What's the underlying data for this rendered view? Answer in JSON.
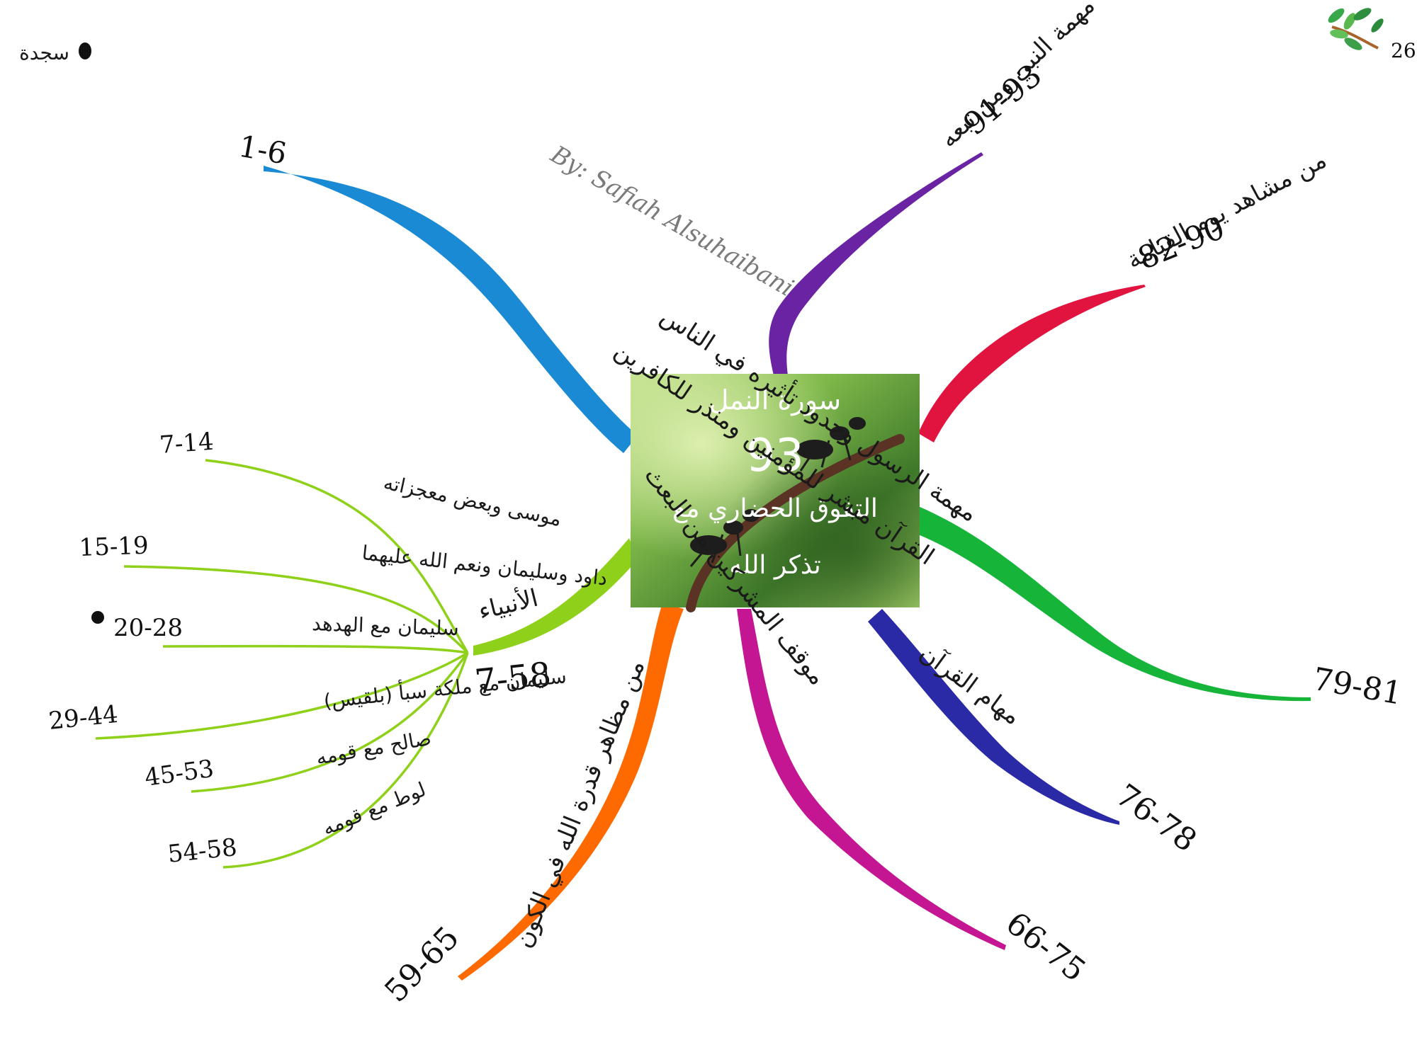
{
  "page_number": "26",
  "legend": {
    "label": "سجدة"
  },
  "credit": "By: Safiah Alsuhaibani",
  "center": {
    "title": "سورة النمل",
    "count": "93",
    "theme_line1": "التفوق الحضاري مع",
    "theme_line2": "تذكر الله"
  },
  "branches": {
    "b1": {
      "title": "القرآن مبشر للمؤمنين ومنذر للكافرين",
      "range": "1-6",
      "color": "#1a8ad4"
    },
    "b2": {
      "title": "مهمة النبي ومن تبعه",
      "range": "91-93",
      "color": "#6a23a3"
    },
    "b3": {
      "title": "من مشاهد يوم القيامة",
      "range": "82-90",
      "color": "#e0143f"
    },
    "b4": {
      "title": "مهمة الرسول وحدود تأثيره في الناس",
      "range": "79-81",
      "color": "#16b53a"
    },
    "b5": {
      "title": "مهام القرآن",
      "range": "76-78",
      "color": "#2a2aa6"
    },
    "b6": {
      "title": "موقف المشركين من البعث",
      "range": "66-75",
      "color": "#c41592"
    },
    "b7": {
      "title": "من مظاهر قدرة الله في الكون",
      "range": "59-65",
      "color": "#ff6a00"
    },
    "b8": {
      "title": "الأنبياء",
      "range": "7-58",
      "color": "#8fd11a"
    }
  },
  "prophets": [
    {
      "label": "موسى وبعض معجزاته",
      "range": "7-14"
    },
    {
      "label": "داود وسليمان ونعم الله عليهما",
      "range": "15-19"
    },
    {
      "label": "سليمان مع الهدهد",
      "range": "20-28"
    },
    {
      "label": "سليمان مع ملكة سبأ (بلقيس)",
      "range": "29-44"
    },
    {
      "label": "صالح مع قومه",
      "range": "45-53"
    },
    {
      "label": "لوط مع قومه",
      "range": "54-58"
    }
  ]
}
